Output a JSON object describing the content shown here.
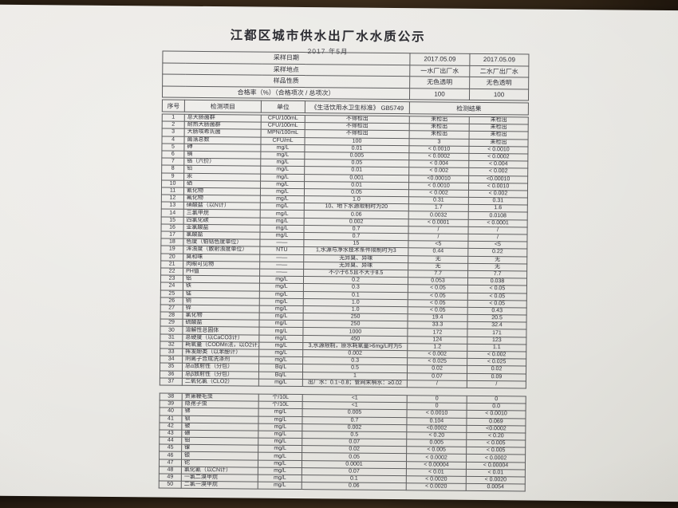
{
  "page": {
    "title": "江都区城市供水出厂水水质公示",
    "subtitle": "2017 年5月"
  },
  "header": {
    "sample_date": {
      "label": "采样日期",
      "plant1": "2017.05.09",
      "plant2": "2017.05.09"
    },
    "sample_location": {
      "label": "采样地点",
      "plant1": "一水厂出厂水",
      "plant2": "二水厂出厂水"
    },
    "sample_nature": {
      "label": "样品性质",
      "plant1": "无色透明",
      "plant2": "无色透明"
    },
    "pass_rate": {
      "label": "合格率（%）（合格项次 / 总项次）",
      "plant1": "100",
      "plant2": "100"
    }
  },
  "columns": {
    "no": "序号",
    "item": "检测项目",
    "unit": "单位",
    "standard": "《生活饮用水卫生标准》 GB5749",
    "result": "检测结果"
  },
  "rows": [
    {
      "no": "1",
      "item": "总大肠菌群",
      "unit": "CFU/100mL",
      "standard": "不得检出",
      "r1": "未检出",
      "r2": "未检出"
    },
    {
      "no": "2",
      "item": "耐热大肠菌群",
      "unit": "CFU/100mL",
      "standard": "不得检出",
      "r1": "未检出",
      "r2": "未检出"
    },
    {
      "no": "3",
      "item": "大肠埃希氏菌",
      "unit": "MPN/100mL",
      "standard": "不得检出",
      "r1": "未检出",
      "r2": "未检出"
    },
    {
      "no": "4",
      "item": "菌落总数",
      "unit": "CFU/mL",
      "standard": "100",
      "r1": "3",
      "r2": "未检出"
    },
    {
      "no": "5",
      "item": "砷",
      "unit": "mg/L",
      "standard": "0.01",
      "r1": "< 0.0010",
      "r2": "< 0.0010"
    },
    {
      "no": "6",
      "item": "镉",
      "unit": "mg/L",
      "standard": "0.005",
      "r1": "< 0.0002",
      "r2": "< 0.0002"
    },
    {
      "no": "7",
      "item": "铬（六价）",
      "unit": "mg/L",
      "standard": "0.05",
      "r1": "< 0.004",
      "r2": "< 0.004"
    },
    {
      "no": "8",
      "item": "铅",
      "unit": "mg/L",
      "standard": "0.01",
      "r1": "< 0.002",
      "r2": "< 0.002"
    },
    {
      "no": "9",
      "item": "汞",
      "unit": "mg/L",
      "standard": "0.001",
      "r1": "<0.00010",
      "r2": "<0.00010"
    },
    {
      "no": "10",
      "item": "硒",
      "unit": "mg/L",
      "standard": "0.01",
      "r1": "< 0.0010",
      "r2": "< 0.0010"
    },
    {
      "no": "11",
      "item": "氰化物",
      "unit": "mg/L",
      "standard": "0.05",
      "r1": "< 0.002",
      "r2": "< 0.002"
    },
    {
      "no": "12",
      "item": "氟化物",
      "unit": "mg/L",
      "standard": "1.0",
      "r1": "0.31",
      "r2": "0.31"
    },
    {
      "no": "13",
      "item": "硝酸盐（以N计）",
      "unit": "mg/L",
      "standard": "10、地下水源限制时为20",
      "r1": "1.7",
      "r2": "1.6"
    },
    {
      "no": "14",
      "item": "三氯甲烷",
      "unit": "mg/L",
      "standard": "0.06",
      "r1": "0.0032",
      "r2": "0.0108"
    },
    {
      "no": "15",
      "item": "四氯化碳",
      "unit": "mg/L",
      "standard": "0.002",
      "r1": "< 0.0001",
      "r2": "< 0.0001"
    },
    {
      "no": "16",
      "item": "亚氯酸盐",
      "unit": "mg/L",
      "standard": "0.7",
      "r1": "/",
      "r2": "/"
    },
    {
      "no": "17",
      "item": "氯酸盐",
      "unit": "mg/L",
      "standard": "0.7",
      "r1": "/",
      "r2": "/"
    },
    {
      "no": "18",
      "item": "色度（铂钴色度单位）",
      "unit": "——",
      "standard": "15",
      "r1": "<5",
      "r2": "<5"
    },
    {
      "no": "19",
      "item": "浑浊度（散射浊度单位）",
      "unit": "NTU",
      "standard": "1,水源与净水技术条件限制时为3",
      "r1": "0.44",
      "r2": "0.22"
    },
    {
      "no": "20",
      "item": "臭和味",
      "unit": "——",
      "standard": "无异臭、异味",
      "r1": "无",
      "r2": "无"
    },
    {
      "no": "21",
      "item": "肉眼可见物",
      "unit": "——",
      "standard": "无异臭、异味",
      "r1": "无",
      "r2": "无"
    },
    {
      "no": "22",
      "item": "PH值",
      "unit": "——",
      "standard": "不小于6.5且不大于8.5",
      "r1": "7.7",
      "r2": "7.7"
    },
    {
      "no": "23",
      "item": "铝",
      "unit": "mg/L",
      "standard": "0.2",
      "r1": "0.053",
      "r2": "0.038"
    },
    {
      "no": "24",
      "item": "铁",
      "unit": "mg/L",
      "standard": "0.3",
      "r1": "< 0.05",
      "r2": "< 0.05"
    },
    {
      "no": "25",
      "item": "锰",
      "unit": "mg/L",
      "standard": "0.1",
      "r1": "< 0.05",
      "r2": "< 0.05"
    },
    {
      "no": "26",
      "item": "铜",
      "unit": "mg/L",
      "standard": "1.0",
      "r1": "< 0.05",
      "r2": "< 0.05"
    },
    {
      "no": "27",
      "item": "锌",
      "unit": "mg/L",
      "standard": "1.0",
      "r1": "< 0.05",
      "r2": "0.43"
    },
    {
      "no": "28",
      "item": "氯化物",
      "unit": "mg/L",
      "standard": "250",
      "r1": "19.4",
      "r2": "20.5"
    },
    {
      "no": "29",
      "item": "硫酸盐",
      "unit": "mg/L",
      "standard": "250",
      "r1": "33.3",
      "r2": "32.4"
    },
    {
      "no": "30",
      "item": "溶解性总固体",
      "unit": "mg/L",
      "standard": "1000",
      "r1": "172",
      "r2": "171"
    },
    {
      "no": "31",
      "item": "总硬度（以CaCO3计）",
      "unit": "mg/L",
      "standard": "450",
      "r1": "124",
      "r2": "123"
    },
    {
      "no": "32",
      "item": "耗氧量（CODMn法，以O2计）",
      "unit": "mg/L",
      "standard": "3,水源限制，原水耗氧量>6mg/L时为5",
      "r1": "1.2",
      "r2": "1.1"
    },
    {
      "no": "33",
      "item": "挥发酚类（以苯酚计）",
      "unit": "mg/L",
      "standard": "0.002",
      "r1": "< 0.002",
      "r2": "< 0.002"
    },
    {
      "no": "34",
      "item": "阴离子合成洗涤剂",
      "unit": "mg/L",
      "standard": "0.3",
      "r1": "< 0.025",
      "r2": "< 0.025"
    },
    {
      "no": "35",
      "item": "总α放射性（分包）",
      "unit": "Bq/L",
      "standard": "0.5",
      "r1": "0.02",
      "r2": "0.02"
    },
    {
      "no": "36",
      "item": "总β放射性（分包）",
      "unit": "Bq/L",
      "standard": "1",
      "r1": "0.07",
      "r2": "0.09"
    },
    {
      "no": "37",
      "item": "二氧化氯（CLO2）",
      "unit": "mg/L",
      "standard": "出厂水：0.1~0.8；管网末梢水：≥0.02",
      "r1": "/",
      "r2": "/"
    },
    {
      "no": "38",
      "item": "贾第鞭毛虫",
      "unit": "个/10L",
      "standard": "<1",
      "r1": "0",
      "r2": "0"
    },
    {
      "no": "39",
      "item": "隐孢子虫",
      "unit": "个/10L",
      "standard": "<1",
      "r1": "0",
      "r2": "0.0"
    },
    {
      "no": "40",
      "item": "锑",
      "unit": "mg/L",
      "standard": "0.005",
      "r1": "< 0.0010",
      "r2": "< 0.0010"
    },
    {
      "no": "41",
      "item": "钡",
      "unit": "mg/L",
      "standard": "0.7",
      "r1": "0.104",
      "r2": "0.069"
    },
    {
      "no": "42",
      "item": "铍",
      "unit": "mg/L",
      "standard": "0.002",
      "r1": "<0.0002",
      "r2": "<0.0002"
    },
    {
      "no": "43",
      "item": "硼",
      "unit": "mg/L",
      "standard": "0.5",
      "r1": "< 0.20",
      "r2": "< 0.20"
    },
    {
      "no": "44",
      "item": "钼",
      "unit": "mg/L",
      "standard": "0.07",
      "r1": "0.005",
      "r2": "< 0.005"
    },
    {
      "no": "45",
      "item": "镍",
      "unit": "mg/L",
      "standard": "0.02",
      "r1": "< 0.005",
      "r2": "< 0.005"
    },
    {
      "no": "46",
      "item": "银",
      "unit": "mg/L",
      "standard": "0.05",
      "r1": "< 0.0002",
      "r2": "< 0.0002"
    },
    {
      "no": "47",
      "item": "铊",
      "unit": "mg/L",
      "standard": "0.0001",
      "r1": "< 0.00004",
      "r2": "< 0.00004"
    },
    {
      "no": "48",
      "item": "氯化氰（以CN计）",
      "unit": "mg/L",
      "standard": "0.07",
      "r1": "< 0.01",
      "r2": "< 0.01"
    },
    {
      "no": "49",
      "item": "一氯二溴甲烷",
      "unit": "mg/L",
      "standard": "0.1",
      "r1": "< 0.0020",
      "r2": "< 0.0020"
    },
    {
      "no": "50",
      "item": "二氯一溴甲烷",
      "unit": "mg/L",
      "standard": "0.06",
      "r1": "< 0.0020",
      "r2": "0.0054"
    }
  ]
}
